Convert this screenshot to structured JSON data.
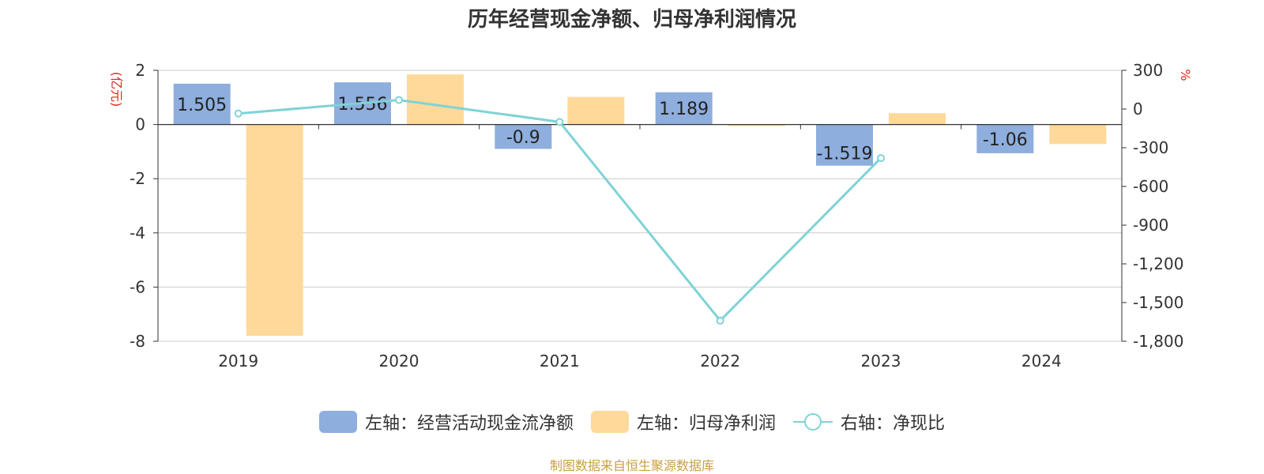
{
  "title": "历年经营现金净额、归母净利润情况",
  "source": "制图数据来自恒生聚源数据库",
  "colors": {
    "cash": "#8eaedd",
    "profit": "#fed99a",
    "ratio": "#7fd3d6",
    "unit": "#e0271a"
  },
  "chart_data": {
    "type": "bar",
    "categories": [
      "2019",
      "2020",
      "2021",
      "2022",
      "2023",
      "2024"
    ],
    "left_axis": {
      "unit": "(亿元)",
      "ylim": [
        -8,
        2
      ],
      "ticks": [
        "2",
        "0",
        "-2",
        "-4",
        "-6",
        "-8"
      ]
    },
    "right_axis": {
      "unit": "%",
      "ylim": [
        -1800,
        300
      ],
      "ticks": [
        "300",
        "0",
        "-300",
        "-600",
        "-900",
        "-1,200",
        "-1,500",
        "-1,800"
      ]
    },
    "series": [
      {
        "name": "左轴：经营活动现金流净额",
        "type": "bar",
        "axis": "left",
        "values": [
          1.505,
          1.556,
          -0.9,
          1.189,
          -1.519,
          -1.06
        ],
        "labels": [
          "1.505",
          "1.556",
          "-0.9",
          "1.189",
          "-1.519",
          "-1.06"
        ]
      },
      {
        "name": "左轴：归母净利润",
        "type": "bar",
        "axis": "left",
        "values": [
          -7.8,
          1.85,
          1.02,
          -0.05,
          0.42,
          -0.72
        ]
      },
      {
        "name": "右轴：净现比",
        "type": "line",
        "axis": "right",
        "values": [
          -35,
          70,
          -100,
          -1640,
          -380,
          null
        ]
      }
    ],
    "grid": true,
    "legend_position": "bottom"
  }
}
